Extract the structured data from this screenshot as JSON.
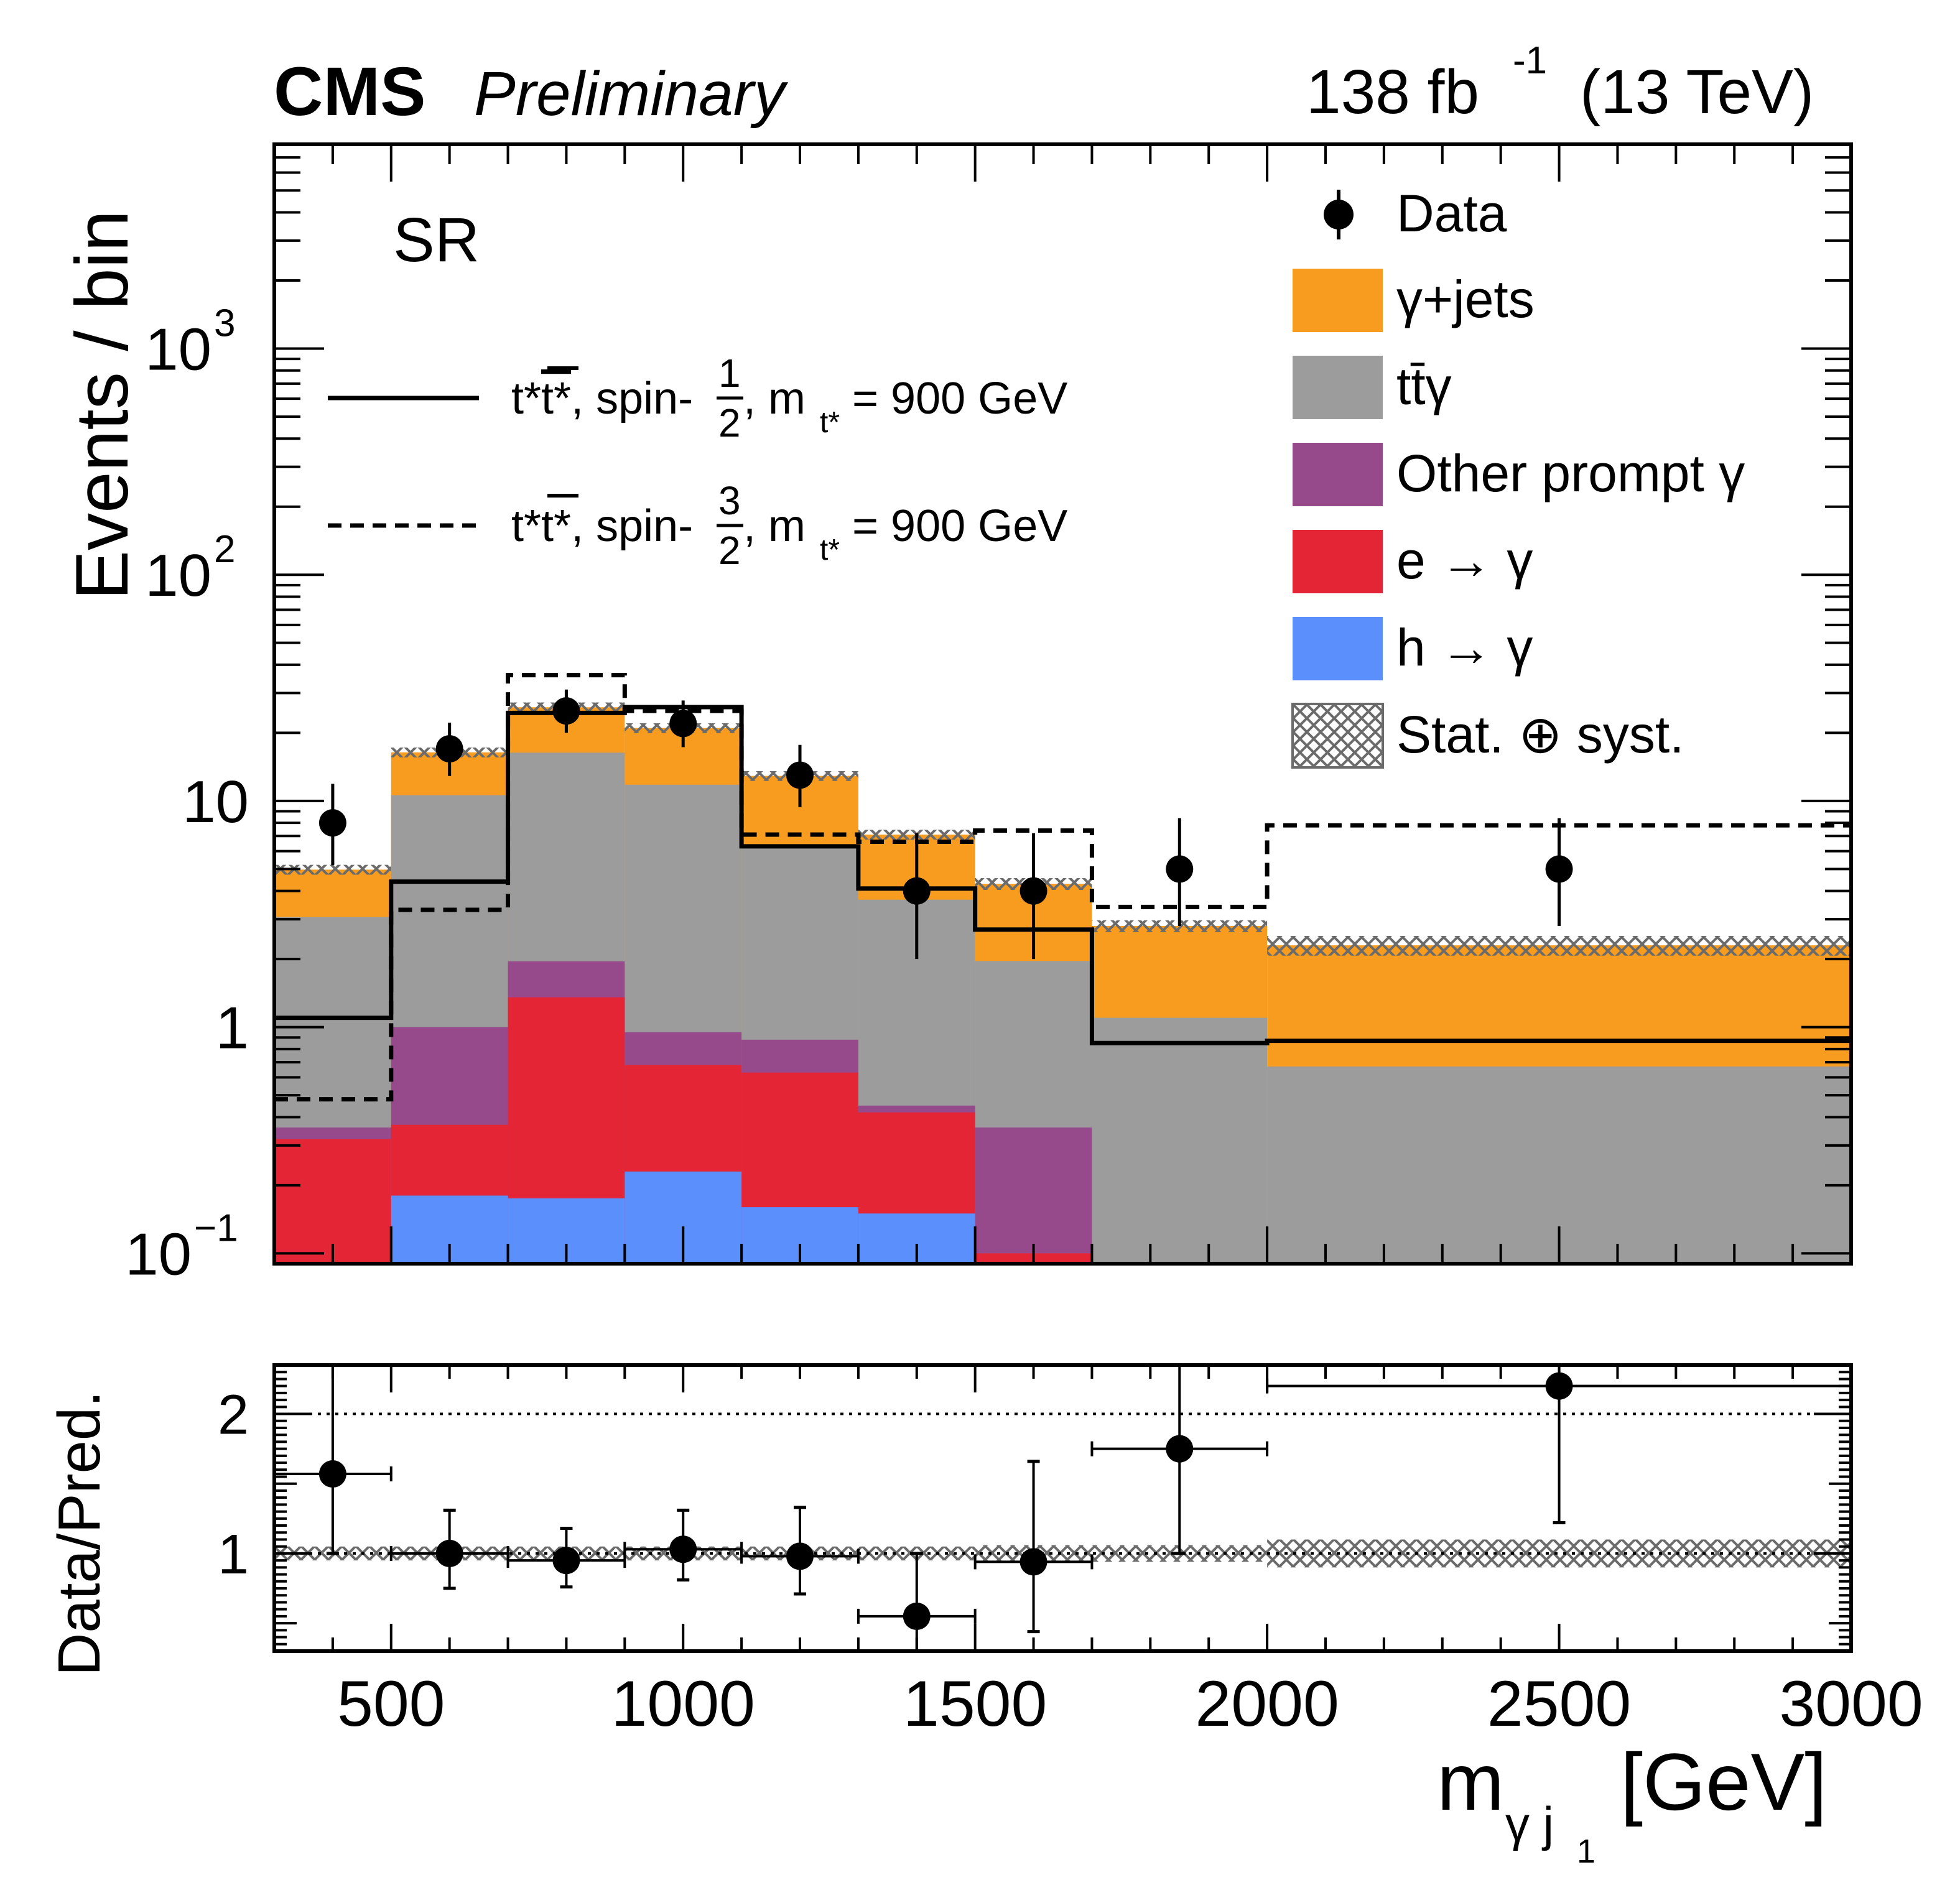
{
  "header": {
    "experiment": "CMS",
    "status": "Preliminary",
    "lumi_main": "138 fb",
    "lumi_exp": "-1",
    "energy": "(13 TeV)"
  },
  "region_label": "SR",
  "chart_data": {
    "type": "bar",
    "subtype": "stacked-histogram-with-ratio",
    "title": "",
    "xlabel": "m_{γ j_1} [GeV]",
    "xlabel_parts": {
      "main": "m",
      "sub1": "γ j",
      "sub2": "1",
      "unit": "[GeV]"
    },
    "ylabel": "Events / bin",
    "ratio_ylabel": "Data/Pred.",
    "xlim": [
      300,
      3000
    ],
    "ylim": [
      0.09,
      8000
    ],
    "yscale": "log",
    "ratio_ylim": [
      0.3,
      2.35
    ],
    "x_ticks": [
      500,
      1000,
      1500,
      2000,
      2500,
      3000
    ],
    "x_tick_labels": [
      "500",
      "1000",
      "1500",
      "2000",
      "2500",
      "3000"
    ],
    "y_ticks": [
      {
        "value": 0.1,
        "base": "10",
        "exp": "−1"
      },
      {
        "value": 1,
        "base": "1",
        "exp": ""
      },
      {
        "value": 10,
        "base": "10",
        "exp": ""
      },
      {
        "value": 100,
        "base": "10",
        "exp": "2"
      },
      {
        "value": 1000,
        "base": "10",
        "exp": "3"
      }
    ],
    "ratio_y_ticks": [
      {
        "value": 1,
        "label": "1"
      },
      {
        "value": 2,
        "label": "2"
      }
    ],
    "ratio_reference_lines": [
      1,
      2
    ],
    "bin_edges": [
      300,
      500,
      700,
      900,
      1100,
      1300,
      1500,
      1700,
      2000,
      3000
    ],
    "stack_order_bottom_to_top": [
      "h_to_gamma",
      "e_to_gamma",
      "other_prompt",
      "ttgamma",
      "gamma_jets"
    ],
    "series": [
      {
        "key": "h_to_gamma",
        "name": "h → γ",
        "color": "#5a8ffc",
        "values": [
          0.0,
          0.18,
          0.175,
          0.23,
          0.16,
          0.15,
          0.0,
          0.0,
          0.0
        ]
      },
      {
        "key": "e_to_gamma",
        "name": "e → γ",
        "color": "#e42536",
        "values": [
          0.32,
          0.19,
          1.18,
          0.45,
          0.47,
          0.27,
          0.1,
          0.0,
          0.0
        ]
      },
      {
        "key": "other_prompt",
        "name": "Other prompt γ",
        "color": "#964a8b",
        "values": [
          0.04,
          0.63,
          0.6,
          0.27,
          0.25,
          0.03,
          0.26,
          0.0,
          0.0
        ]
      },
      {
        "key": "ttgamma",
        "name": "tt̄γ",
        "color": "#9c9c9c",
        "values": [
          2.71,
          9.6,
          14.4,
          10.85,
          5.32,
          3.21,
          1.6,
          1.1,
          0.67
        ]
      },
      {
        "key": "gamma_jets",
        "name": "γ+jets",
        "color": "#f89c20",
        "values": [
          1.9,
          5.8,
          9.6,
          9.2,
          6.7,
          3.44,
          2.34,
          1.7,
          1.63
        ]
      }
    ],
    "uncertainty": {
      "name": "Stat. ⊕ syst.",
      "color": "#6b6b6b",
      "rel_down": [
        0.05,
        0.05,
        0.05,
        0.05,
        0.05,
        0.05,
        0.06,
        0.06,
        0.1
      ],
      "rel_up": [
        0.05,
        0.05,
        0.05,
        0.05,
        0.05,
        0.05,
        0.06,
        0.06,
        0.1
      ]
    },
    "signals": [
      {
        "name": "t*t̄*, spin-1/2, m_t* = 900 GeV",
        "style": "solid",
        "values": [
          1.1,
          4.4,
          24.5,
          26,
          6.3,
          4.1,
          2.7,
          0.85,
          0.87
        ]
      },
      {
        "name": "t*t̄*, spin-3/2, m_t* = 900 GeV",
        "style": "dashed",
        "values": [
          0.48,
          3.3,
          36,
          25,
          7.1,
          6.6,
          7.4,
          3.4,
          7.8
        ]
      }
    ],
    "data": {
      "name": "Data",
      "x": [
        400,
        600,
        800,
        1000,
        1200,
        1400,
        1600,
        1850,
        2500
      ],
      "values": [
        8,
        17,
        25,
        22,
        13,
        4,
        4,
        5,
        5
      ],
      "err_low": [
        2.8,
        4.1,
        5.0,
        4.7,
        3.6,
        2.0,
        2.0,
        2.2,
        2.2
      ],
      "err_high": [
        3.9,
        5.2,
        6.1,
        5.8,
        4.7,
        3.2,
        3.2,
        3.4,
        3.4
      ]
    },
    "ratio": {
      "values": [
        1.57,
        1.0,
        0.95,
        1.03,
        0.98,
        0.55,
        0.94,
        1.75,
        2.2
      ],
      "err_low": [
        0.57,
        0.25,
        0.19,
        0.22,
        0.27,
        0.29,
        0.5,
        0.75,
        0.98
      ],
      "err_high": [
        0.78,
        0.31,
        0.23,
        0.28,
        0.35,
        0.45,
        0.72,
        1.2,
        1.5
      ]
    },
    "legend": {
      "placement": "top-right",
      "entries": [
        {
          "label": "Data",
          "kind": "marker"
        },
        {
          "label": "γ+jets",
          "kind": "fill",
          "color": "#f89c20"
        },
        {
          "label": "tt̄γ",
          "kind": "fill",
          "color": "#9c9c9c"
        },
        {
          "label": "Other prompt γ",
          "kind": "fill",
          "color": "#964a8b"
        },
        {
          "label": "e → γ",
          "kind": "fill",
          "color": "#e42536"
        },
        {
          "label": "h → γ",
          "kind": "fill",
          "color": "#5a8ffc"
        },
        {
          "label": "Stat. ⊕ syst.",
          "kind": "hatch"
        }
      ],
      "signal_entries": [
        {
          "prefix": "t*",
          "bar": "t*",
          "mid": ", spin-",
          "num": "1",
          "den": "2",
          "after": ", m",
          "sub": "t*",
          "tail": " = 900 GeV",
          "style": "solid"
        },
        {
          "prefix": "t*",
          "bar": "t*",
          "mid": ", spin-",
          "num": "3",
          "den": "2",
          "after": ", m",
          "sub": "t*",
          "tail": " = 900 GeV",
          "style": "dashed"
        }
      ],
      "signal_placement": "top-left"
    }
  }
}
